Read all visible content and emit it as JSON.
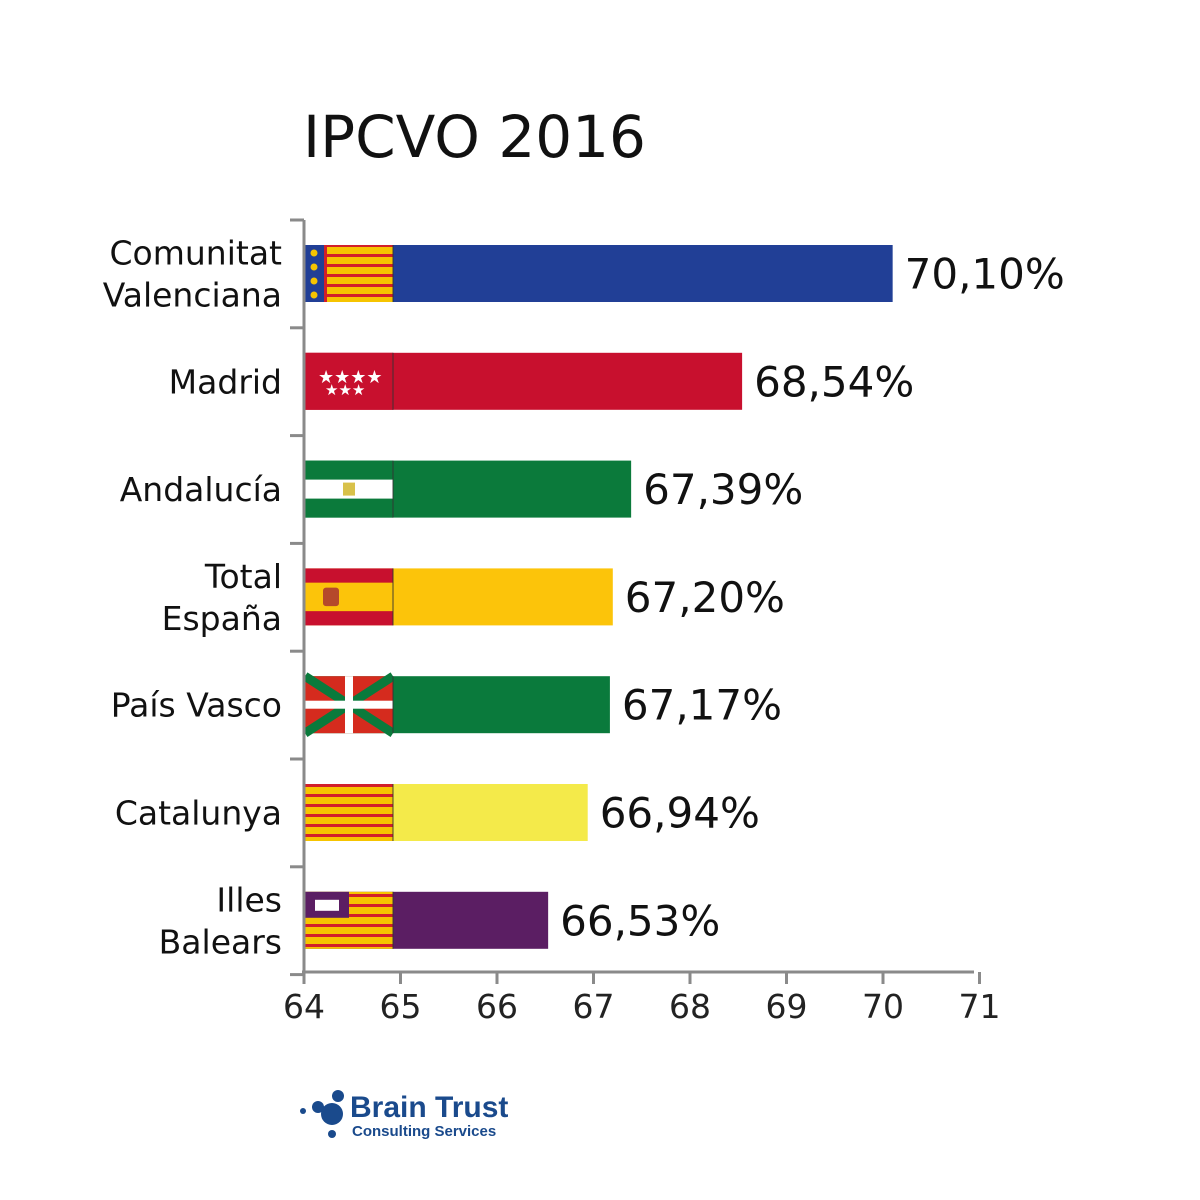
{
  "chart_data": {
    "type": "bar",
    "orientation": "horizontal",
    "title": "IPCVO 2016",
    "categories": [
      [
        "Comunitat",
        "Valenciana"
      ],
      [
        "Madrid"
      ],
      [
        "Andalucía"
      ],
      [
        "Total",
        "España"
      ],
      [
        "País Vasco"
      ],
      [
        "Catalunya"
      ],
      [
        "Illes",
        "Balears"
      ]
    ],
    "values": [
      70.1,
      68.54,
      67.39,
      67.2,
      67.17,
      66.94,
      66.53
    ],
    "value_labels": [
      "70,10%",
      "68,54%",
      "67,39%",
      "67,20%",
      "67,17%",
      "66,94%",
      "66,53%"
    ],
    "bar_colors": [
      "#213f96",
      "#c8102e",
      "#0b7a3b",
      "#fcc40a",
      "#0a7a3c",
      "#f4ea4a",
      "#5b1e63"
    ],
    "flags": [
      "valencia-flag",
      "madrid-flag",
      "andalucia-flag",
      "spain-flag",
      "basque-flag",
      "catalonia-flag",
      "balearic-flag"
    ],
    "xlim": [
      64,
      71
    ],
    "xticks": [
      "64",
      "65",
      "66",
      "67",
      "68",
      "69",
      "70",
      "71"
    ],
    "grid": false
  },
  "logo": {
    "name": "Brain Trust",
    "subtitle": "Consulting Services"
  }
}
